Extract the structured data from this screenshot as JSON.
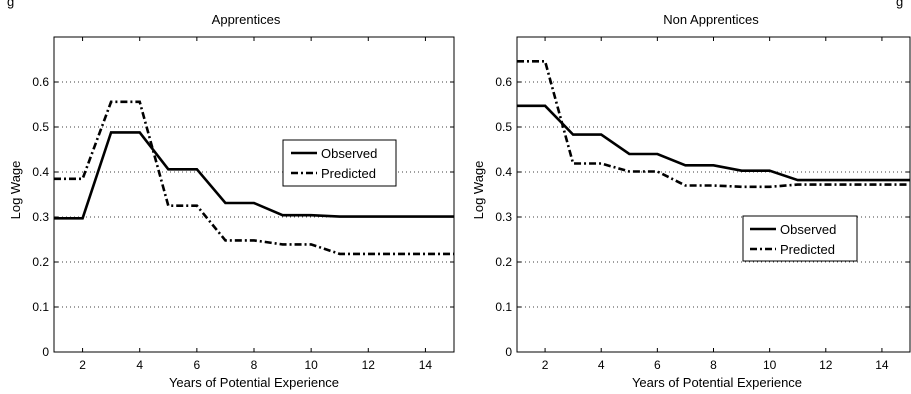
{
  "chart_data": [
    {
      "type": "line",
      "title": "Apprentices",
      "xlabel": "Years of Potential Experience",
      "ylabel": "Log Wage",
      "xlim": [
        1,
        15
      ],
      "ylim": [
        0,
        0.7
      ],
      "xticks": [
        2,
        4,
        6,
        8,
        10,
        12,
        14
      ],
      "yticks": [
        "0",
        "0.1",
        "0.2",
        "0.3",
        "0.4",
        "0.5",
        "0.6"
      ],
      "grid": "y-dotted",
      "legend_position": "right-middle",
      "series": [
        {
          "name": "Observed",
          "style": "solid",
          "x": [
            1,
            2,
            3,
            4,
            5,
            6,
            7,
            8,
            9,
            10,
            11,
            12,
            13,
            14,
            15
          ],
          "y": [
            0.297,
            0.297,
            0.488,
            0.488,
            0.406,
            0.406,
            0.331,
            0.331,
            0.304,
            0.304,
            0.301,
            0.301,
            0.301,
            0.301,
            0.301
          ]
        },
        {
          "name": "Predicted",
          "style": "dash-dot",
          "x": [
            1,
            2,
            3,
            4,
            5,
            6,
            7,
            8,
            9,
            10,
            11,
            12,
            13,
            14,
            15
          ],
          "y": [
            0.385,
            0.385,
            0.556,
            0.556,
            0.325,
            0.325,
            0.248,
            0.248,
            0.239,
            0.239,
            0.218,
            0.218,
            0.218,
            0.218,
            0.218
          ]
        }
      ]
    },
    {
      "type": "line",
      "title": "Non Apprentices",
      "xlabel": "Years of Potential Experience",
      "ylabel": "Log Wage",
      "xlim": [
        1,
        15
      ],
      "ylim": [
        0,
        0.7
      ],
      "xticks": [
        2,
        4,
        6,
        8,
        10,
        12,
        14
      ],
      "yticks": [
        "0",
        "0.1",
        "0.2",
        "0.3",
        "0.4",
        "0.5",
        "0.6"
      ],
      "grid": "y-dotted",
      "legend_position": "lower-right",
      "series": [
        {
          "name": "Observed",
          "style": "solid",
          "x": [
            1,
            2,
            3,
            4,
            5,
            6,
            7,
            8,
            9,
            10,
            11,
            12,
            13,
            14,
            15
          ],
          "y": [
            0.547,
            0.547,
            0.483,
            0.483,
            0.44,
            0.44,
            0.415,
            0.415,
            0.403,
            0.403,
            0.382,
            0.382,
            0.382,
            0.382,
            0.382
          ]
        },
        {
          "name": "Predicted",
          "style": "dash-dot",
          "x": [
            1,
            2,
            3,
            4,
            5,
            6,
            7,
            8,
            9,
            10,
            11,
            12,
            13,
            14,
            15
          ],
          "y": [
            0.646,
            0.646,
            0.419,
            0.419,
            0.401,
            0.401,
            0.37,
            0.37,
            0.367,
            0.367,
            0.372,
            0.372,
            0.372,
            0.372,
            0.372
          ]
        }
      ]
    }
  ]
}
